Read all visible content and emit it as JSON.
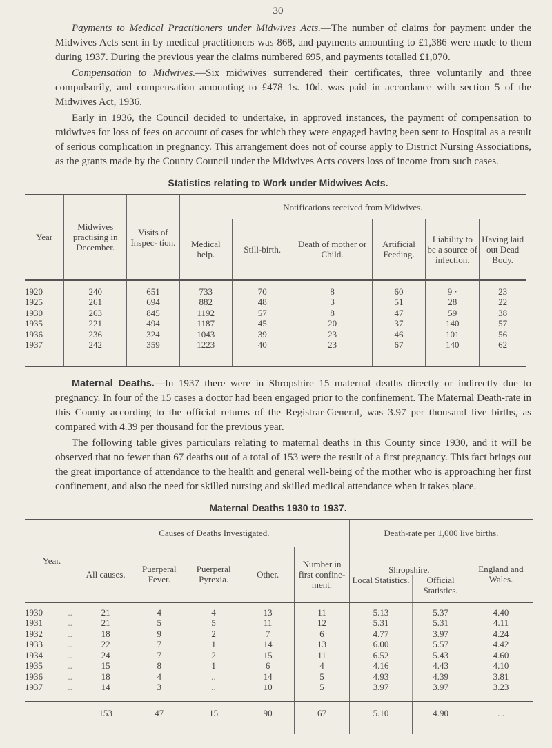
{
  "page_number": "30",
  "paragraphs": {
    "p1_heading": "Payments to Medical Practitioners under Midwives Acts.",
    "p1_text": "—The number of claims for payment under the Midwives Acts sent in by medical practitioners was 868, and payments amounting to £1,386 were made to them during 1937. During the previous year the claims numbered 695, and payments totalled £1,070.",
    "p2_heading": "Compensation to Midwives.",
    "p2_text": "—Six midwives surrendered their certificates, three voluntarily and three compulsorily, and compensation amounting to £478 1s. 10d. was paid in accordance with section 5 of the Midwives Act, 1936.",
    "p3_text": "Early in 1936, the Council decided to undertake, in approved instances, the payment of compensation to midwives for loss of fees on account of cases for which they were engaged having been sent to Hospital as a result of serious complication in pregnancy. This arrangement does not of course apply to District Nursing Associations, as the grants made by the County Council under the Midwives Acts covers loss of income from such cases.",
    "p4_heading": "Maternal Deaths.",
    "p4_text": "—In 1937 there were in Shropshire 15 maternal deaths directly or indirectly due to pregnancy. In four of the 15 cases a doctor had been engaged prior to the confinement. The Maternal Death-rate in this County according to the official returns of the Registrar-General, was 3.97 per thousand live births, as compared with 4.39 per thousand for the previous year.",
    "p5_text": "The following table gives particulars relating to maternal deaths in this County since 1930, and it will be observed that no fewer than 67 deaths out of a total of 153 were the result of a first pregnancy. This fact brings out the great importance of attendance to the health and general well-being of the mother who is approaching her first confinement, and also the need for skilled nursing and skilled medical attendance when it takes place."
  },
  "table1": {
    "title": "Statistics relating to Work under Midwives Acts.",
    "group_header": "Notifications received from Midwives.",
    "headers": [
      "Year",
      "Midwives practising in December.",
      "Visits of Inspec- tion.",
      "Medical help.",
      "Still-birth.",
      "Death of mother or Child.",
      "Artificial Feeding.",
      "Liability to be a source of infection.",
      "Having laid out Dead Body."
    ],
    "rows": [
      [
        "1920",
        "240",
        "651",
        "733",
        "70",
        "8",
        "60",
        "9 ·",
        "23"
      ],
      [
        "1925",
        "261",
        "694",
        "882",
        "48",
        "3",
        "51",
        "28",
        "22"
      ],
      [
        "1930",
        "263",
        "845",
        "1192",
        "57",
        "8",
        "47",
        "59",
        "38"
      ],
      [
        "1935",
        "221",
        "494",
        "1187",
        "45",
        "20",
        "37",
        "140",
        "57"
      ],
      [
        "1936",
        "236",
        "324",
        "1043",
        "39",
        "23",
        "46",
        "101",
        "56"
      ],
      [
        "1937",
        "242",
        "359",
        "1223",
        "40",
        "23",
        "67",
        "140",
        "62"
      ]
    ]
  },
  "table2": {
    "title": "Maternal Deaths 1930 to 1937.",
    "group_causes": "Causes of Deaths Investigated.",
    "group_rate": "Death-rate per 1,000 live births.",
    "shropshire": "Shropshire.",
    "headers": [
      "Year.",
      "All causes.",
      "Puerperal Fever.",
      "Puerperal Pyrexia.",
      "Other.",
      "Number in first confine- ment.",
      "Local Statistics.",
      "Official Statistics.",
      "England and Wales."
    ],
    "rows": [
      [
        "1930",
        "..",
        "21",
        "4",
        "4",
        "13",
        "11",
        "5.13",
        "5.37",
        "4.40"
      ],
      [
        "1931",
        "..",
        "21",
        "5",
        "5",
        "11",
        "12",
        "5.31",
        "5.31",
        "4.11"
      ],
      [
        "1932",
        "..",
        "18",
        "9",
        "2",
        "7",
        "6",
        "4.77",
        "3.97",
        "4.24"
      ],
      [
        "1933",
        "..",
        "22",
        "7",
        "1",
        "14",
        "13",
        "6.00",
        "5.57",
        "4.42"
      ],
      [
        "1934",
        "..",
        "24",
        "7",
        "2",
        "15",
        "11",
        "6.52",
        "5.43",
        "4.60"
      ],
      [
        "1935",
        "..",
        "15",
        "8",
        "1",
        "6",
        "4",
        "4.16",
        "4.43",
        "4.10"
      ],
      [
        "1936",
        "..",
        "18",
        "4",
        "..",
        "14",
        "5",
        "4.93",
        "4.39",
        "3.81"
      ],
      [
        "1937",
        "..",
        "14",
        "3",
        "..",
        "10",
        "5",
        "3.97",
        "3.97",
        "3.23"
      ]
    ],
    "totals": [
      "153",
      "47",
      "15",
      "90",
      "67",
      "5.10",
      "4.90",
      ". ."
    ]
  }
}
